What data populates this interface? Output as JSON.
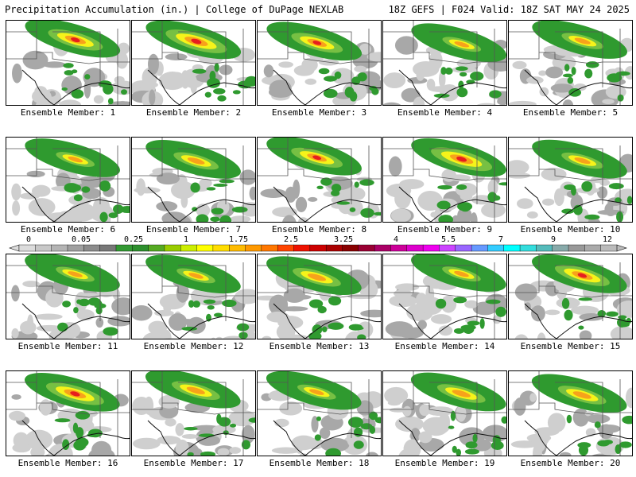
{
  "header": {
    "title_left": "Precipitation Accumulation (in.) | College of DuPage NEXLAB",
    "title_right": "18Z GEFS | F024 Valid: 18Z SAT MAY 24 2025"
  },
  "members": [
    {
      "label": "Ensemble Member: 1",
      "intensity": 0.85
    },
    {
      "label": "Ensemble Member: 2",
      "intensity": 0.95
    },
    {
      "label": "Ensemble Member: 3",
      "intensity": 0.8
    },
    {
      "label": "Ensemble Member: 4",
      "intensity": 0.6
    },
    {
      "label": "Ensemble Member: 5",
      "intensity": 0.65
    },
    {
      "label": "Ensemble Member: 6",
      "intensity": 0.6
    },
    {
      "label": "Ensemble Member: 7",
      "intensity": 0.7
    },
    {
      "label": "Ensemble Member: 8",
      "intensity": 0.8
    },
    {
      "label": "Ensemble Member: 9",
      "intensity": 0.95
    },
    {
      "label": "Ensemble Member: 10",
      "intensity": 0.65
    },
    {
      "label": "Ensemble Member: 11",
      "intensity": 0.6
    },
    {
      "label": "Ensemble Member: 12",
      "intensity": 0.6
    },
    {
      "label": "Ensemble Member: 13",
      "intensity": 0.75
    },
    {
      "label": "Ensemble Member: 14",
      "intensity": 0.6
    },
    {
      "label": "Ensemble Member: 15",
      "intensity": 0.85
    },
    {
      "label": "Ensemble Member: 16",
      "intensity": 0.9
    },
    {
      "label": "Ensemble Member: 17",
      "intensity": 0.75
    },
    {
      "label": "Ensemble Member: 18",
      "intensity": 0.6
    },
    {
      "label": "Ensemble Member: 19",
      "intensity": 0.75
    },
    {
      "label": "Ensemble Member: 20",
      "intensity": 0.75
    }
  ],
  "colorbar": {
    "tick_labels": [
      "0",
      "0.05",
      "0.25",
      "1",
      "1.75",
      "2.5",
      "3.25",
      "4",
      "5.5",
      "7",
      "9",
      "12"
    ],
    "colors": [
      "#dcdcdc",
      "#c8c8c8",
      "#b4b4b4",
      "#a0a0a0",
      "#8c8c8c",
      "#787878",
      "#339933",
      "#2d8f2d",
      "#55aa22",
      "#99cc00",
      "#ccee00",
      "#ffff00",
      "#ffdd00",
      "#ffbb00",
      "#ff9900",
      "#ff7700",
      "#ff4400",
      "#ee1100",
      "#cc0000",
      "#aa0000",
      "#880000",
      "#990033",
      "#aa0066",
      "#cc0099",
      "#dd00cc",
      "#ee00ee",
      "#cc44ff",
      "#9966ff",
      "#6699ff",
      "#33ccff",
      "#00ffff",
      "#33dddd",
      "#55bbbb",
      "#88aaaa",
      "#999999",
      "#aaaaaa",
      "#bbbbbb"
    ]
  },
  "colors": {
    "light_precip": "#cfcfcf",
    "mid_precip": "#a8a8a8",
    "green": "#2f9a2f",
    "light_green": "#77c043",
    "yellow": "#f6f31a",
    "orange": "#f7a21b",
    "red": "#e61e1e",
    "darkred": "#b20000",
    "border": "#000000",
    "state_line": "#555555"
  }
}
